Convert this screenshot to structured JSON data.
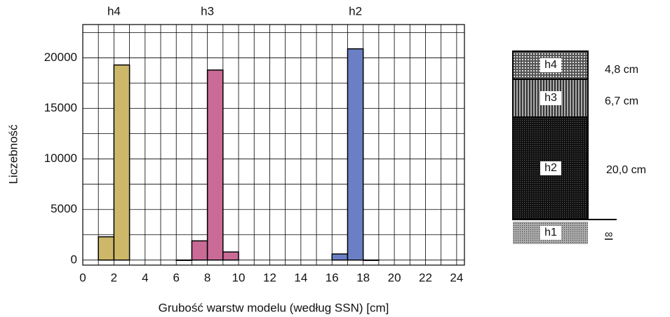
{
  "chart_data": {
    "type": "histogram",
    "x_label": "Grubość warstw modelu (według SSN) [cm]",
    "y_label": "Liczebność",
    "xlim": [
      0,
      24.5
    ],
    "ylim": [
      -500,
      23300
    ],
    "xticks": [
      0,
      2,
      4,
      6,
      8,
      10,
      12,
      14,
      16,
      18,
      20,
      22,
      24
    ],
    "minor_xticks": [
      1,
      3,
      5,
      7,
      9,
      11,
      13,
      15,
      17,
      19,
      21,
      23
    ],
    "yticks": [
      0,
      5000,
      10000,
      15000,
      20000
    ],
    "minor_yticks": [
      2500,
      7500,
      12500,
      17500,
      22500
    ],
    "grid": true,
    "series": [
      {
        "name": "h4",
        "color": "#cdb86a",
        "bins": [
          1,
          2,
          3
        ],
        "values": [
          2300,
          19300
        ]
      },
      {
        "name": "h3",
        "color": "#c96a97",
        "bins": [
          6,
          7,
          8,
          9,
          10
        ],
        "values": [
          0,
          1900,
          18800,
          800
        ]
      },
      {
        "name": "h2",
        "color": "#6b80c4",
        "bins": [
          16,
          17,
          18,
          19
        ],
        "values": [
          600,
          20900,
          0
        ]
      }
    ]
  },
  "diagram": {
    "layers": [
      {
        "label": "h4",
        "thickness": "4,8 cm"
      },
      {
        "label": "h3",
        "thickness": "6,7 cm"
      },
      {
        "label": "h2",
        "thickness": "20,0 cm"
      },
      {
        "label": "h1",
        "thickness": "∞"
      }
    ]
  }
}
